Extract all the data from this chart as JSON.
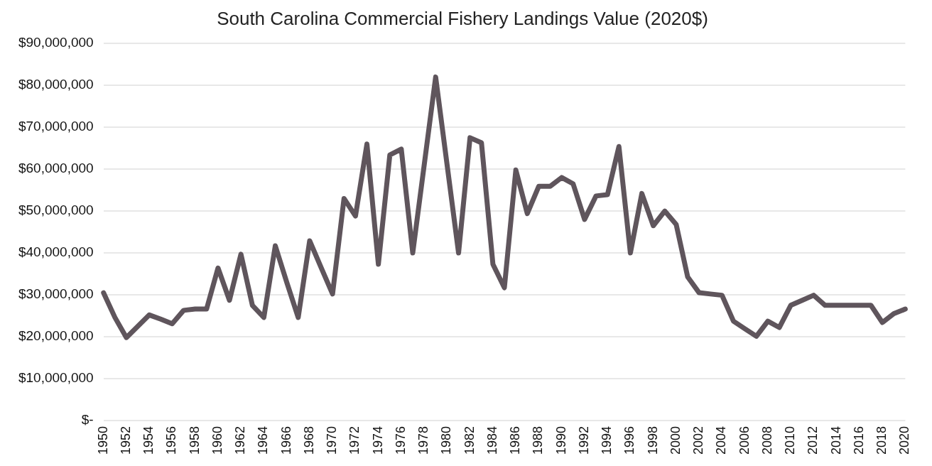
{
  "chart_data": {
    "type": "line",
    "title": "South Carolina Commercial Fishery Landings Value (2020$)",
    "categories": [
      "1950",
      null,
      "1952",
      null,
      "1954",
      null,
      "1956",
      null,
      "1958",
      null,
      "1960",
      null,
      "1962",
      null,
      "1964",
      null,
      "1966",
      null,
      "1968",
      null,
      "1970",
      null,
      "1972",
      null,
      "1974",
      null,
      "1976",
      null,
      "1978",
      null,
      "1980",
      null,
      "1982",
      null,
      "1984",
      null,
      "1986",
      null,
      "1988",
      null,
      "1990",
      null,
      "1992",
      null,
      "1994",
      null,
      "1996",
      null,
      "1998",
      null,
      "2000",
      null,
      "2002",
      null,
      "2004",
      null,
      "2006",
      null,
      "2008",
      null,
      "2010",
      null,
      "2012",
      null,
      "2014",
      null,
      "2016",
      null,
      "2018",
      null,
      "2020"
    ],
    "series": [
      {
        "color": "#5f555c",
        "values": [
          30500000,
          24600000,
          19800000,
          22500000,
          25200000,
          24200000,
          23100000,
          26300000,
          26600000,
          26600000,
          36400000,
          28700000,
          39700000,
          27500000,
          24600000,
          41700000,
          33000000,
          24600000,
          42900000,
          36500000,
          30200000,
          53000000,
          48800000,
          66000000,
          37300000,
          63400000,
          64800000,
          40000000,
          61000000,
          82000000,
          61000000,
          40000000,
          67500000,
          66300000,
          37300000,
          31700000,
          59800000,
          49400000,
          55900000,
          55900000,
          58000000,
          56500000,
          48000000,
          53600000,
          53900000,
          65400000,
          40000000,
          54200000,
          46500000,
          50000000,
          46800000,
          34300000,
          30500000,
          30200000,
          29900000,
          23700000,
          21900000,
          20100000,
          23700000,
          22200000,
          27500000,
          28700000,
          29900000,
          27500000,
          27500000,
          27500000,
          27500000,
          27500000,
          23400000,
          25500000,
          26600000
        ]
      }
    ],
    "ylim": [
      0,
      90000000
    ],
    "yticks": [
      {
        "value": 0,
        "label": "$-"
      },
      {
        "value": 10000000,
        "label": "$10,000,000"
      },
      {
        "value": 20000000,
        "label": "$20,000,000"
      },
      {
        "value": 30000000,
        "label": "$30,000,000"
      },
      {
        "value": 40000000,
        "label": "$40,000,000"
      },
      {
        "value": 50000000,
        "label": "$50,000,000"
      },
      {
        "value": 60000000,
        "label": "$60,000,000"
      },
      {
        "value": 70000000,
        "label": "$70,000,000"
      },
      {
        "value": 80000000,
        "label": "$80,000,000"
      },
      {
        "value": 90000000,
        "label": "$90,000,000"
      }
    ],
    "grid": "y",
    "legend": false,
    "marker": "none",
    "line_style": "solid"
  }
}
